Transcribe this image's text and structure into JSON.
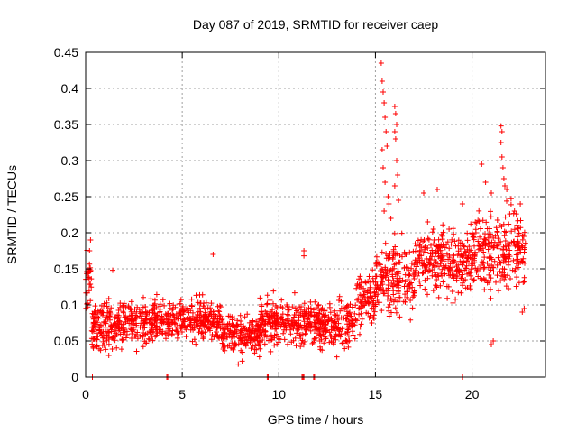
{
  "chart_data": {
    "type": "scatter",
    "title": "Day 087 of 2019, SRMTID for receiver caep",
    "xlabel": "GPS time / hours",
    "ylabel": "SRMTID / TECUs",
    "xlim": [
      0,
      23.8
    ],
    "ylim": [
      0,
      0.45
    ],
    "xticks": [
      0,
      5,
      10,
      15,
      20
    ],
    "xtick_labels": [
      "0",
      "5",
      "10",
      "15",
      "20"
    ],
    "yticks": [
      0,
      0.05,
      0.1,
      0.15,
      0.2,
      0.25,
      0.3,
      0.35,
      0.4,
      0.45
    ],
    "ytick_labels": [
      "0",
      "0.05",
      "0.1",
      "0.15",
      "0.2",
      "0.25",
      "0.3",
      "0.35",
      "0.4",
      "0.45"
    ],
    "grid": true,
    "marker": "+",
    "color": "#ff0000",
    "series": [
      {
        "name": "SRMTID",
        "segments": [
          {
            "x_start": 0.0,
            "x_end": 0.3,
            "y_mean": 0.135,
            "y_spread": 0.04
          },
          {
            "x_start": 0.3,
            "x_end": 3.0,
            "y_mean": 0.072,
            "y_spread": 0.03
          },
          {
            "x_start": 3.0,
            "x_end": 7.0,
            "y_mean": 0.078,
            "y_spread": 0.028
          },
          {
            "x_start": 7.0,
            "x_end": 9.0,
            "y_mean": 0.06,
            "y_spread": 0.025
          },
          {
            "x_start": 9.0,
            "x_end": 11.5,
            "y_mean": 0.075,
            "y_spread": 0.03
          },
          {
            "x_start": 11.5,
            "x_end": 14.0,
            "y_mean": 0.075,
            "y_spread": 0.03
          },
          {
            "x_start": 14.0,
            "x_end": 15.0,
            "y_mean": 0.105,
            "y_spread": 0.035
          },
          {
            "x_start": 15.0,
            "x_end": 17.0,
            "y_mean": 0.135,
            "y_spread": 0.045
          },
          {
            "x_start": 17.0,
            "x_end": 20.0,
            "y_mean": 0.16,
            "y_spread": 0.045
          },
          {
            "x_start": 20.0,
            "x_end": 22.8,
            "y_mean": 0.175,
            "y_spread": 0.05
          }
        ],
        "spikes": [
          [
            15.3,
            0.435
          ],
          [
            15.35,
            0.41
          ],
          [
            15.4,
            0.395
          ],
          [
            15.45,
            0.38
          ],
          [
            15.5,
            0.36
          ],
          [
            15.55,
            0.34
          ],
          [
            15.6,
            0.32
          ],
          [
            15.35,
            0.315
          ],
          [
            15.4,
            0.29
          ],
          [
            15.5,
            0.27
          ],
          [
            15.65,
            0.25
          ],
          [
            15.7,
            0.24
          ],
          [
            15.45,
            0.23
          ],
          [
            15.8,
            0.22
          ],
          [
            16.0,
            0.375
          ],
          [
            16.05,
            0.365
          ],
          [
            16.1,
            0.35
          ],
          [
            16.0,
            0.34
          ],
          [
            16.05,
            0.33
          ],
          [
            16.1,
            0.3
          ],
          [
            16.15,
            0.28
          ],
          [
            16.0,
            0.265
          ],
          [
            16.2,
            0.245
          ],
          [
            17.5,
            0.255
          ],
          [
            18.2,
            0.26
          ],
          [
            19.5,
            0.24
          ],
          [
            20.5,
            0.295
          ],
          [
            20.7,
            0.27
          ],
          [
            21.0,
            0.255
          ],
          [
            21.5,
            0.348
          ],
          [
            21.55,
            0.34
          ],
          [
            21.5,
            0.325
          ],
          [
            21.55,
            0.305
          ],
          [
            21.6,
            0.29
          ],
          [
            21.65,
            0.275
          ],
          [
            21.7,
            0.265
          ],
          [
            21.8,
            0.26
          ],
          [
            6.6,
            0.17
          ],
          [
            11.3,
            0.175
          ],
          [
            11.3,
            0.168
          ],
          [
            0.25,
            0.19
          ],
          [
            0.2,
            0.175
          ],
          [
            1.4,
            0.148
          ],
          [
            17.7,
            0.215
          ],
          [
            18.0,
            0.205
          ],
          [
            20.2,
            0.2
          ],
          [
            22.2,
            0.23
          ],
          [
            22.5,
            0.24
          ],
          [
            0.4,
            0.04
          ],
          [
            1.2,
            0.03
          ],
          [
            7.9,
            0.018
          ],
          [
            8.1,
            0.022
          ],
          [
            13.0,
            0.028
          ],
          [
            21.0,
            0.045
          ],
          [
            21.1,
            0.05
          ],
          [
            22.6,
            0.09
          ],
          [
            22.7,
            0.095
          ]
        ],
        "zero_points": [
          [
            0.35,
            0.0
          ],
          [
            4.2,
            0.0
          ],
          [
            4.25,
            0.0
          ],
          [
            9.4,
            0.0
          ],
          [
            9.45,
            0.0
          ],
          [
            11.2,
            0.0
          ],
          [
            11.25,
            0.0
          ],
          [
            11.3,
            0.0
          ],
          [
            11.8,
            0.0
          ],
          [
            11.85,
            0.0
          ],
          [
            19.5,
            0.0
          ]
        ]
      }
    ]
  }
}
